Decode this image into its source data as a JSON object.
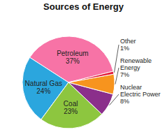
{
  "chart_data": {
    "type": "pie",
    "title": "Sources of Energy",
    "categories": [
      "Petroleum",
      "Natural Gas",
      "Coal",
      "Nuclear Electric Power",
      "Renewable Energy",
      "Other"
    ],
    "values": [
      37,
      24,
      23,
      8,
      7,
      1
    ],
    "value_labels": [
      "37%",
      "24%",
      "23%",
      "8%",
      "7%",
      "1%"
    ],
    "colors": [
      "#f773a6",
      "#2ba6de",
      "#8dc63f",
      "#8b2f8b",
      "#f7941e",
      "#e31b3b"
    ],
    "data_labels": true
  }
}
